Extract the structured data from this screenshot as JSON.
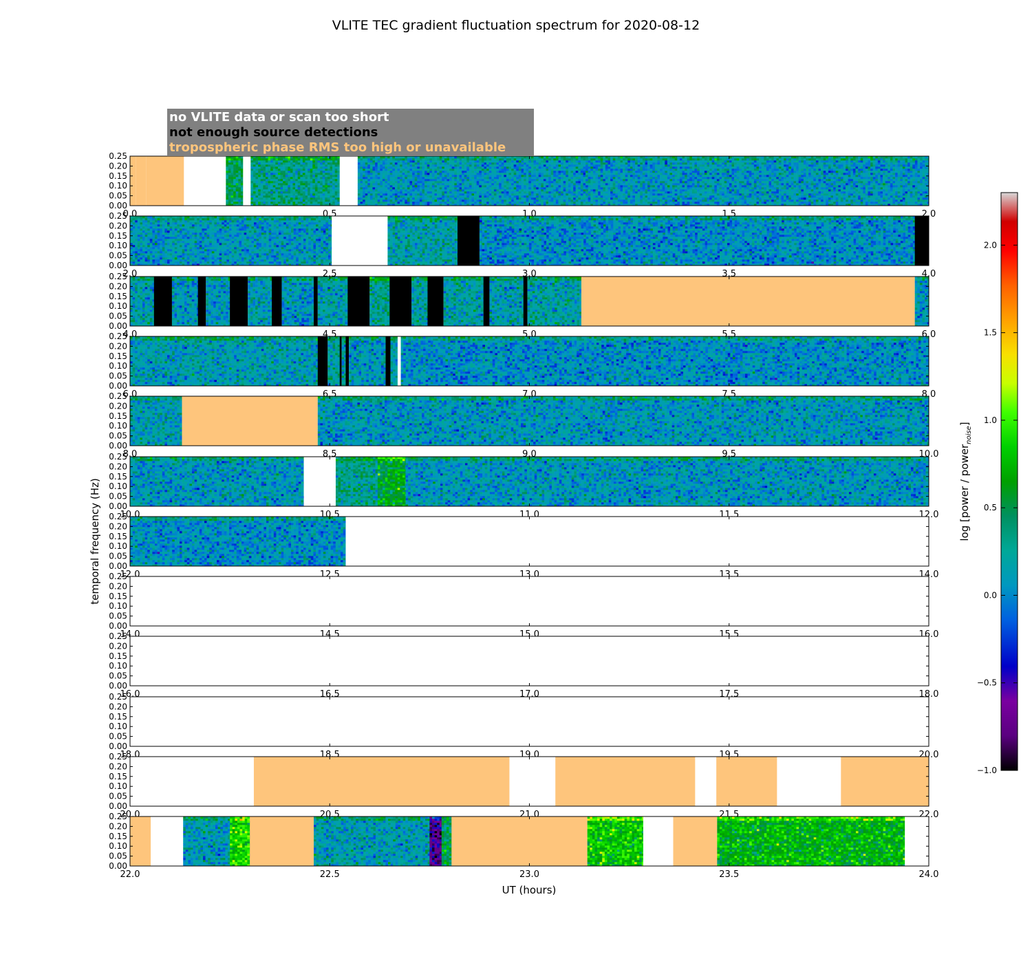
{
  "chart_data": {
    "type": "heatmap",
    "title": "VLITE TEC gradient fluctuation spectrum for 2020-08-12",
    "xlabel": "UT (hours)",
    "ylabel": "temporal frequency (Hz)",
    "ylim": [
      0,
      0.25
    ],
    "y_ticks": [
      "0.00",
      "0.05",
      "0.10",
      "0.15",
      "0.20",
      "0.25"
    ],
    "colorbar": {
      "label": "log [power / power",
      "label_sub": "noise",
      "label_close": "]",
      "range": [
        -1.0,
        2.3
      ],
      "ticks": [
        "−1.0",
        "−0.5",
        "0.0",
        "0.5",
        "1.0",
        "1.5",
        "2.0"
      ],
      "tick_values": [
        -1.0,
        -0.5,
        0.0,
        0.5,
        1.0,
        1.5,
        2.0
      ]
    },
    "legend": {
      "placement": "top-left",
      "entries": [
        {
          "label": "no VLITE data or scan too short",
          "color": "#ffffff",
          "background": "#808080"
        },
        {
          "label": "not enough source detections",
          "color": "#000000",
          "background": "#808080"
        },
        {
          "label": "tropospheric phase RMS too high or unavailable",
          "color": "#fec57c",
          "background": "#808080"
        }
      ]
    },
    "category_colors": {
      "nodata": "#ffffff",
      "detections": "#000000",
      "troposphere": "#fec57c"
    },
    "rows": [
      {
        "xlim": [
          0,
          2
        ],
        "x_ticks": [
          "0.0",
          "0.5",
          "1.0",
          "1.5",
          "2.0"
        ],
        "segments": [
          [
            0,
            0.015,
            "troposphere"
          ],
          [
            0.015,
            0.04,
            "troposphere"
          ],
          [
            0.04,
            0.135,
            "troposphere"
          ],
          [
            0.135,
            0.24,
            "nodata"
          ],
          [
            0.24,
            0.283,
            "data",
            0.45
          ],
          [
            0.283,
            0.302,
            "nodata"
          ],
          [
            0.302,
            0.525,
            "data",
            0.3
          ],
          [
            0.525,
            0.57,
            "nodata"
          ],
          [
            0.57,
            2.0,
            "data",
            0.1
          ]
        ]
      },
      {
        "xlim": [
          2,
          4
        ],
        "x_ticks": [
          "2.0",
          "2.5",
          "3.0",
          "3.5",
          "4.0"
        ],
        "segments": [
          [
            2.0,
            2.505,
            "data",
            0.1
          ],
          [
            2.505,
            2.645,
            "nodata"
          ],
          [
            2.645,
            2.82,
            "data",
            0.2
          ],
          [
            2.82,
            2.875,
            "detections"
          ],
          [
            2.875,
            3.965,
            "data",
            0.05
          ],
          [
            3.965,
            4.0,
            "detections"
          ]
        ]
      },
      {
        "xlim": [
          4,
          6
        ],
        "x_ticks": [
          "4.0",
          "4.5",
          "5.0",
          "5.5",
          "6.0"
        ],
        "segments": [
          [
            4.0,
            4.06,
            "data",
            0.15
          ],
          [
            4.06,
            4.105,
            "detections"
          ],
          [
            4.105,
            4.17,
            "data",
            0.1
          ],
          [
            4.17,
            4.19,
            "detections"
          ],
          [
            4.19,
            4.25,
            "data",
            0.1
          ],
          [
            4.25,
            4.295,
            "detections"
          ],
          [
            4.295,
            4.355,
            "data",
            0.15
          ],
          [
            4.355,
            4.38,
            "detections"
          ],
          [
            4.38,
            4.46,
            "data",
            0.1
          ],
          [
            4.46,
            4.47,
            "detections"
          ],
          [
            4.47,
            4.545,
            "data",
            0.15
          ],
          [
            4.545,
            4.6,
            "detections"
          ],
          [
            4.6,
            4.65,
            "data",
            0.3
          ],
          [
            4.65,
            4.705,
            "detections"
          ],
          [
            4.705,
            4.745,
            "data",
            0.2
          ],
          [
            4.745,
            4.785,
            "detections"
          ],
          [
            4.785,
            4.885,
            "data",
            0.2
          ],
          [
            4.885,
            4.9,
            "detections"
          ],
          [
            4.9,
            4.985,
            "data",
            0.15
          ],
          [
            4.985,
            4.995,
            "detections"
          ],
          [
            4.995,
            5.13,
            "data",
            0.2
          ],
          [
            5.13,
            5.965,
            "troposphere"
          ],
          [
            5.965,
            6.0,
            "data",
            0.1
          ]
        ]
      },
      {
        "xlim": [
          6,
          8
        ],
        "x_ticks": [
          "6.0",
          "6.5",
          "7.0",
          "7.5",
          "8.0"
        ],
        "segments": [
          [
            6.0,
            6.47,
            "data",
            0.15
          ],
          [
            6.47,
            6.495,
            "detections"
          ],
          [
            6.495,
            6.525,
            "data",
            0.2
          ],
          [
            6.525,
            6.53,
            "detections"
          ],
          [
            6.53,
            6.54,
            "data",
            0.2
          ],
          [
            6.54,
            6.548,
            "detections"
          ],
          [
            6.548,
            6.64,
            "data",
            0.1
          ],
          [
            6.64,
            6.652,
            "detections"
          ],
          [
            6.652,
            6.67,
            "data",
            0.2
          ],
          [
            6.67,
            6.678,
            "nodata"
          ],
          [
            6.678,
            8.0,
            "data",
            0.05
          ]
        ]
      },
      {
        "xlim": [
          8,
          10
        ],
        "x_ticks": [
          "8.0",
          "8.5",
          "9.0",
          "9.5",
          "10.0"
        ],
        "segments": [
          [
            8.0,
            8.13,
            "data",
            0.15
          ],
          [
            8.13,
            8.47,
            "troposphere"
          ],
          [
            8.47,
            10.0,
            "data",
            0.1
          ]
        ]
      },
      {
        "xlim": [
          10,
          12
        ],
        "x_ticks": [
          "10.0",
          "10.5",
          "11.0",
          "11.5",
          "12.0"
        ],
        "segments": [
          [
            10.0,
            10.435,
            "data",
            0.1
          ],
          [
            10.435,
            10.515,
            "nodata"
          ],
          [
            10.515,
            10.62,
            "data",
            0.3
          ],
          [
            10.62,
            10.69,
            "data",
            0.6
          ],
          [
            10.69,
            12.0,
            "data",
            0.1
          ]
        ]
      },
      {
        "xlim": [
          12,
          14
        ],
        "x_ticks": [
          "12.0",
          "12.5",
          "13.0",
          "13.5",
          "14.0"
        ],
        "segments": [
          [
            12.0,
            12.54,
            "data",
            0.05
          ],
          [
            12.54,
            14.0,
            "nodata"
          ]
        ]
      },
      {
        "xlim": [
          14,
          16
        ],
        "x_ticks": [
          "14.0",
          "14.5",
          "15.0",
          "15.5",
          "16.0"
        ],
        "segments": [
          [
            14.0,
            16.0,
            "nodata"
          ]
        ]
      },
      {
        "xlim": [
          16,
          18
        ],
        "x_ticks": [
          "16.0",
          "16.5",
          "17.0",
          "17.5",
          "18.0"
        ],
        "segments": [
          [
            16.0,
            18.0,
            "nodata"
          ]
        ]
      },
      {
        "xlim": [
          18,
          20
        ],
        "x_ticks": [
          "18.0",
          "18.5",
          "19.0",
          "19.5",
          "20.0"
        ],
        "segments": [
          [
            18.0,
            20.0,
            "nodata"
          ]
        ]
      },
      {
        "xlim": [
          20,
          22
        ],
        "x_ticks": [
          "20.0",
          "20.5",
          "21.0",
          "21.5",
          "22.0"
        ],
        "segments": [
          [
            20.0,
            20.31,
            "nodata"
          ],
          [
            20.31,
            20.95,
            "troposphere"
          ],
          [
            20.95,
            21.065,
            "nodata"
          ],
          [
            21.065,
            21.415,
            "troposphere"
          ],
          [
            21.415,
            21.468,
            "nodata"
          ],
          [
            21.468,
            21.62,
            "troposphere"
          ],
          [
            21.62,
            21.78,
            "nodata"
          ],
          [
            21.78,
            22.0,
            "troposphere"
          ]
        ]
      },
      {
        "xlim": [
          22,
          24
        ],
        "x_ticks": [
          "22.0",
          "22.5",
          "23.0",
          "23.5",
          "24.0"
        ],
        "segments": [
          [
            22.0,
            22.052,
            "troposphere"
          ],
          [
            22.052,
            22.133,
            "nodata"
          ],
          [
            22.133,
            22.25,
            "data",
            0.15
          ],
          [
            22.25,
            22.3,
            "data",
            0.85
          ],
          [
            22.3,
            22.46,
            "troposphere"
          ],
          [
            22.46,
            22.75,
            "data",
            0.15
          ],
          [
            22.75,
            22.78,
            "data",
            -0.7
          ],
          [
            22.78,
            22.805,
            "data",
            0.45
          ],
          [
            22.805,
            23.145,
            "troposphere"
          ],
          [
            23.145,
            23.285,
            "data",
            0.8
          ],
          [
            23.285,
            23.36,
            "nodata"
          ],
          [
            23.36,
            23.47,
            "troposphere"
          ],
          [
            23.47,
            23.94,
            "data",
            0.7
          ],
          [
            23.94,
            24.0,
            "nodata"
          ]
        ]
      }
    ]
  }
}
